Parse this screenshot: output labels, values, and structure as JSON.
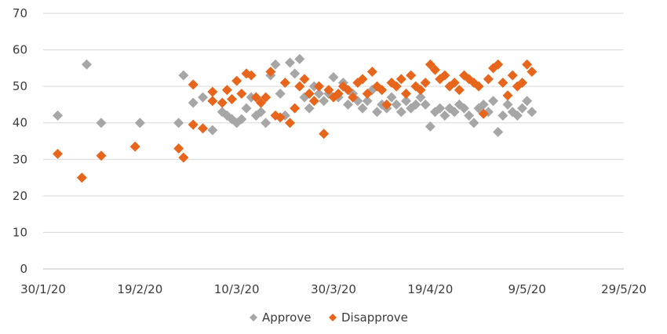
{
  "chart_data": {
    "type": "scatter",
    "title": "",
    "xlabel": "",
    "ylabel": "",
    "ylim": [
      0,
      70
    ],
    "yticks": [
      0,
      10,
      20,
      30,
      40,
      50,
      60,
      70
    ],
    "xlim": [
      "2020-01-30",
      "2020-05-29"
    ],
    "xticks": [
      {
        "date": "2020-01-30",
        "label": "30/1/20"
      },
      {
        "date": "2020-02-19",
        "label": "19/2/20"
      },
      {
        "date": "2020-03-10",
        "label": "10/3/20"
      },
      {
        "date": "2020-03-30",
        "label": "30/3/20"
      },
      {
        "date": "2020-04-19",
        "label": "19/4/20"
      },
      {
        "date": "2020-05-09",
        "label": "9/5/20"
      },
      {
        "date": "2020-05-29",
        "label": "29/5/20"
      }
    ],
    "grid": "horizontal",
    "legend": "bottom",
    "series": [
      {
        "name": "Approve",
        "color": "#a6a6a6",
        "points": [
          [
            "2020-02-02",
            42
          ],
          [
            "2020-02-08",
            56
          ],
          [
            "2020-02-11",
            40
          ],
          [
            "2020-02-19",
            40
          ],
          [
            "2020-02-27",
            40
          ],
          [
            "2020-02-28",
            53
          ],
          [
            "2020-03-01",
            45.5
          ],
          [
            "2020-03-03",
            47
          ],
          [
            "2020-03-05",
            38
          ],
          [
            "2020-03-07",
            43
          ],
          [
            "2020-03-08",
            42
          ],
          [
            "2020-03-09",
            41
          ],
          [
            "2020-03-10",
            40
          ],
          [
            "2020-03-11",
            41
          ],
          [
            "2020-03-12",
            44
          ],
          [
            "2020-03-13",
            47
          ],
          [
            "2020-03-14",
            42
          ],
          [
            "2020-03-15",
            43
          ],
          [
            "2020-03-16",
            40
          ],
          [
            "2020-03-17",
            53
          ],
          [
            "2020-03-18",
            56
          ],
          [
            "2020-03-19",
            48
          ],
          [
            "2020-03-20",
            42
          ],
          [
            "2020-03-21",
            56.5
          ],
          [
            "2020-03-22",
            53.5
          ],
          [
            "2020-03-23",
            57.5
          ],
          [
            "2020-03-23",
            50
          ],
          [
            "2020-03-24",
            47
          ],
          [
            "2020-03-25",
            44
          ],
          [
            "2020-03-26",
            50
          ],
          [
            "2020-03-27",
            48
          ],
          [
            "2020-03-28",
            46
          ],
          [
            "2020-03-29",
            48
          ],
          [
            "2020-03-30",
            52.5
          ],
          [
            "2020-03-31",
            47
          ],
          [
            "2020-04-01",
            51
          ],
          [
            "2020-04-02",
            45
          ],
          [
            "2020-04-03",
            48
          ],
          [
            "2020-04-04",
            46
          ],
          [
            "2020-04-05",
            44
          ],
          [
            "2020-04-06",
            46
          ],
          [
            "2020-04-07",
            49
          ],
          [
            "2020-04-08",
            43
          ],
          [
            "2020-04-09",
            45
          ],
          [
            "2020-04-10",
            44
          ],
          [
            "2020-04-11",
            47
          ],
          [
            "2020-04-12",
            45
          ],
          [
            "2020-04-13",
            43
          ],
          [
            "2020-04-14",
            46
          ],
          [
            "2020-04-15",
            44
          ],
          [
            "2020-04-16",
            45
          ],
          [
            "2020-04-17",
            47
          ],
          [
            "2020-04-18",
            45
          ],
          [
            "2020-04-19",
            39
          ],
          [
            "2020-04-20",
            43
          ],
          [
            "2020-04-21",
            44
          ],
          [
            "2020-04-22",
            42
          ],
          [
            "2020-04-23",
            44
          ],
          [
            "2020-04-24",
            43
          ],
          [
            "2020-04-25",
            45
          ],
          [
            "2020-04-26",
            44
          ],
          [
            "2020-04-27",
            42
          ],
          [
            "2020-04-28",
            40
          ],
          [
            "2020-04-29",
            44
          ],
          [
            "2020-04-30",
            45
          ],
          [
            "2020-05-01",
            43
          ],
          [
            "2020-05-02",
            46
          ],
          [
            "2020-05-03",
            37.5
          ],
          [
            "2020-05-04",
            42
          ],
          [
            "2020-05-05",
            45
          ],
          [
            "2020-05-06",
            43
          ],
          [
            "2020-05-07",
            42
          ],
          [
            "2020-05-08",
            44
          ],
          [
            "2020-05-09",
            46
          ],
          [
            "2020-05-10",
            43
          ]
        ]
      },
      {
        "name": "Disapprove",
        "color": "#e8651c",
        "points": [
          [
            "2020-02-02",
            31.5
          ],
          [
            "2020-02-07",
            25
          ],
          [
            "2020-02-11",
            31
          ],
          [
            "2020-02-18",
            33.5
          ],
          [
            "2020-02-27",
            33
          ],
          [
            "2020-02-28",
            30.5
          ],
          [
            "2020-03-01",
            50.5
          ],
          [
            "2020-03-01",
            39.5
          ],
          [
            "2020-03-03",
            38.5
          ],
          [
            "2020-03-05",
            48.5
          ],
          [
            "2020-03-05",
            46
          ],
          [
            "2020-03-07",
            45.5
          ],
          [
            "2020-03-08",
            49
          ],
          [
            "2020-03-09",
            46.5
          ],
          [
            "2020-03-10",
            51.5
          ],
          [
            "2020-03-11",
            48
          ],
          [
            "2020-03-12",
            53.5
          ],
          [
            "2020-03-13",
            53
          ],
          [
            "2020-03-14",
            47
          ],
          [
            "2020-03-15",
            45.5
          ],
          [
            "2020-03-16",
            47
          ],
          [
            "2020-03-17",
            54
          ],
          [
            "2020-03-18",
            42
          ],
          [
            "2020-03-19",
            41.5
          ],
          [
            "2020-03-20",
            51
          ],
          [
            "2020-03-21",
            40
          ],
          [
            "2020-03-22",
            44
          ],
          [
            "2020-03-23",
            50
          ],
          [
            "2020-03-24",
            52
          ],
          [
            "2020-03-25",
            48
          ],
          [
            "2020-03-26",
            46
          ],
          [
            "2020-03-27",
            50
          ],
          [
            "2020-03-28",
            37
          ],
          [
            "2020-03-29",
            49
          ],
          [
            "2020-03-30",
            47
          ],
          [
            "2020-03-31",
            48
          ],
          [
            "2020-04-01",
            50
          ],
          [
            "2020-04-02",
            49
          ],
          [
            "2020-04-03",
            47
          ],
          [
            "2020-04-04",
            51
          ],
          [
            "2020-04-05",
            52
          ],
          [
            "2020-04-06",
            48
          ],
          [
            "2020-04-07",
            54
          ],
          [
            "2020-04-08",
            50
          ],
          [
            "2020-04-09",
            49
          ],
          [
            "2020-04-10",
            45
          ],
          [
            "2020-04-11",
            51
          ],
          [
            "2020-04-12",
            50
          ],
          [
            "2020-04-13",
            52
          ],
          [
            "2020-04-14",
            48
          ],
          [
            "2020-04-15",
            53
          ],
          [
            "2020-04-16",
            50
          ],
          [
            "2020-04-17",
            49
          ],
          [
            "2020-04-18",
            51
          ],
          [
            "2020-04-19",
            56
          ],
          [
            "2020-04-20",
            54.5
          ],
          [
            "2020-04-21",
            52
          ],
          [
            "2020-04-22",
            53
          ],
          [
            "2020-04-23",
            50
          ],
          [
            "2020-04-24",
            51
          ],
          [
            "2020-04-25",
            49
          ],
          [
            "2020-04-26",
            53
          ],
          [
            "2020-04-27",
            52
          ],
          [
            "2020-04-28",
            51
          ],
          [
            "2020-04-29",
            50
          ],
          [
            "2020-04-30",
            42.5
          ],
          [
            "2020-05-01",
            52
          ],
          [
            "2020-05-02",
            55
          ],
          [
            "2020-05-03",
            56
          ],
          [
            "2020-05-04",
            51
          ],
          [
            "2020-05-05",
            47.5
          ],
          [
            "2020-05-06",
            53
          ],
          [
            "2020-05-07",
            50
          ],
          [
            "2020-05-08",
            51
          ],
          [
            "2020-05-09",
            56
          ],
          [
            "2020-05-10",
            54
          ]
        ]
      }
    ]
  }
}
